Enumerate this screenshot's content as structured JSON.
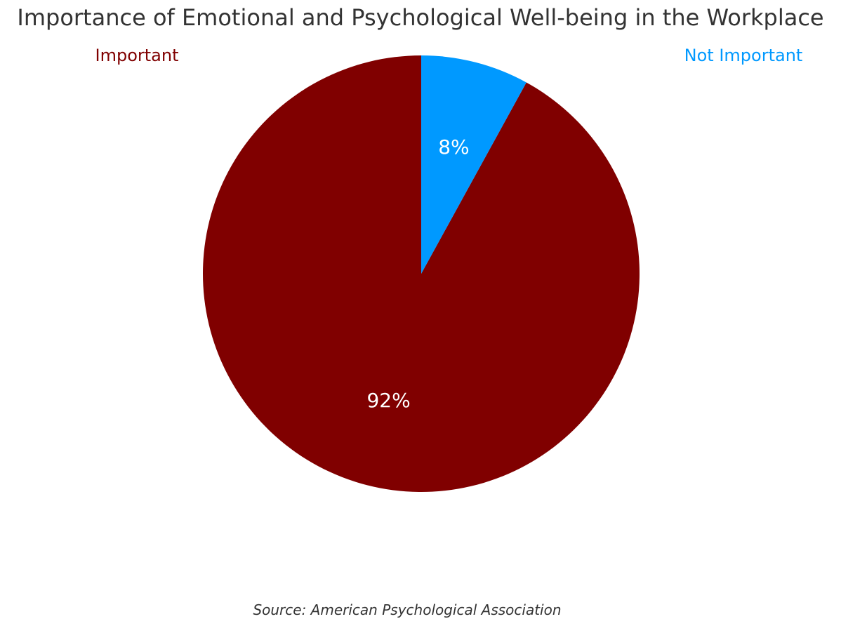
{
  "chart_data": {
    "type": "pie",
    "title": "Importance of Emotional and Psychological Well-being in the Workplace",
    "slices": [
      {
        "label": "Important",
        "value": 92,
        "value_label": "92%",
        "color": "#800000"
      },
      {
        "label": "Not Important",
        "value": 8,
        "value_label": "8%",
        "color": "#0099ff"
      }
    ],
    "start_angle": "top",
    "direction": "counterclockwise",
    "label_text_color": "#ffffff",
    "source": "Source: American Psychological Association"
  }
}
